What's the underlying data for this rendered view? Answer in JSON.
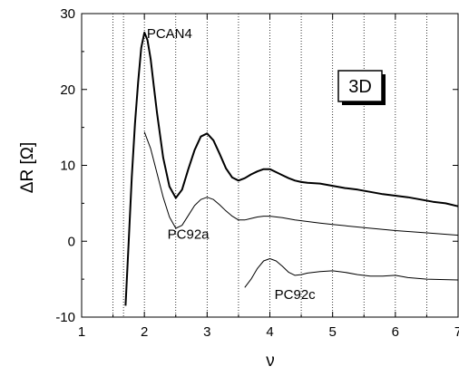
{
  "chart_data": {
    "type": "line",
    "xlabel": "ν",
    "ylabel": "ΔR [Ω]",
    "xlim": [
      1,
      7
    ],
    "ylim": [
      -10,
      30
    ],
    "x_ticks": [
      1,
      2,
      3,
      4,
      5,
      6,
      7
    ],
    "x_tick_labels": [
      "1",
      "2",
      "3",
      "4",
      "5",
      "6",
      "7"
    ],
    "y_ticks": [
      -10,
      0,
      10,
      20,
      30
    ],
    "y_tick_labels": [
      "-10",
      "0",
      "10",
      "20",
      "30"
    ],
    "vertical_dotted_lines_at": [
      1.5,
      1.667,
      2.0,
      2.5,
      3.0,
      3.5,
      4.0,
      4.5,
      5.0,
      5.5,
      6.0,
      6.5
    ],
    "grid": false,
    "legend": "none",
    "annotation_box": {
      "text": "3D"
    },
    "series": [
      {
        "name": "PCAN4",
        "label_at": [
          2.4,
          26.8
        ],
        "stroke_width": 2,
        "x": [
          1.7,
          1.75,
          1.8,
          1.85,
          1.9,
          1.95,
          2.0,
          2.05,
          2.1,
          2.15,
          2.2,
          2.3,
          2.4,
          2.5,
          2.6,
          2.7,
          2.8,
          2.9,
          3.0,
          3.1,
          3.2,
          3.3,
          3.4,
          3.5,
          3.6,
          3.7,
          3.8,
          3.9,
          4.0,
          4.1,
          4.2,
          4.3,
          4.4,
          4.5,
          4.6,
          4.8,
          5.0,
          5.2,
          5.4,
          5.6,
          5.8,
          6.0,
          6.2,
          6.4,
          6.6,
          6.8,
          7.0
        ],
        "y": [
          -8.5,
          0.0,
          8.5,
          15.5,
          21.0,
          25.5,
          27.5,
          26.5,
          24.0,
          20.5,
          17.0,
          11.0,
          7.2,
          5.7,
          6.8,
          9.5,
          12.0,
          13.8,
          14.2,
          13.3,
          11.5,
          9.6,
          8.4,
          8.0,
          8.3,
          8.8,
          9.2,
          9.5,
          9.5,
          9.1,
          8.7,
          8.3,
          8.0,
          7.8,
          7.7,
          7.6,
          7.3,
          7.0,
          6.8,
          6.5,
          6.2,
          6.0,
          5.8,
          5.5,
          5.2,
          5.0,
          4.6
        ]
      },
      {
        "name": "PC92a",
        "label_at": [
          2.7,
          0.3
        ],
        "stroke_width": 1,
        "x": [
          2.0,
          2.1,
          2.2,
          2.3,
          2.4,
          2.5,
          2.6,
          2.7,
          2.8,
          2.9,
          3.0,
          3.1,
          3.2,
          3.3,
          3.4,
          3.5,
          3.6,
          3.7,
          3.8,
          3.9,
          4.0,
          4.2,
          4.4,
          4.6,
          4.8,
          5.0,
          5.5,
          6.0,
          6.5,
          7.0
        ],
        "y": [
          14.4,
          12.2,
          9.0,
          5.8,
          3.2,
          1.7,
          2.1,
          3.4,
          4.7,
          5.5,
          5.8,
          5.5,
          4.8,
          4.0,
          3.3,
          2.8,
          2.8,
          3.0,
          3.2,
          3.3,
          3.3,
          3.1,
          2.8,
          2.6,
          2.4,
          2.2,
          1.8,
          1.4,
          1.1,
          0.8
        ]
      },
      {
        "name": "PC92c",
        "label_at": [
          4.4,
          -7.6
        ],
        "stroke_width": 1,
        "x": [
          3.6,
          3.7,
          3.8,
          3.9,
          4.0,
          4.1,
          4.2,
          4.3,
          4.4,
          4.5,
          4.6,
          4.8,
          5.0,
          5.2,
          5.4,
          5.6,
          5.8,
          6.0,
          6.2,
          6.5,
          7.0
        ],
        "y": [
          -6.1,
          -5.0,
          -3.6,
          -2.6,
          -2.3,
          -2.6,
          -3.3,
          -4.1,
          -4.5,
          -4.4,
          -4.2,
          -4.0,
          -3.9,
          -4.1,
          -4.4,
          -4.6,
          -4.6,
          -4.5,
          -4.8,
          -5.0,
          -5.1
        ]
      }
    ]
  }
}
